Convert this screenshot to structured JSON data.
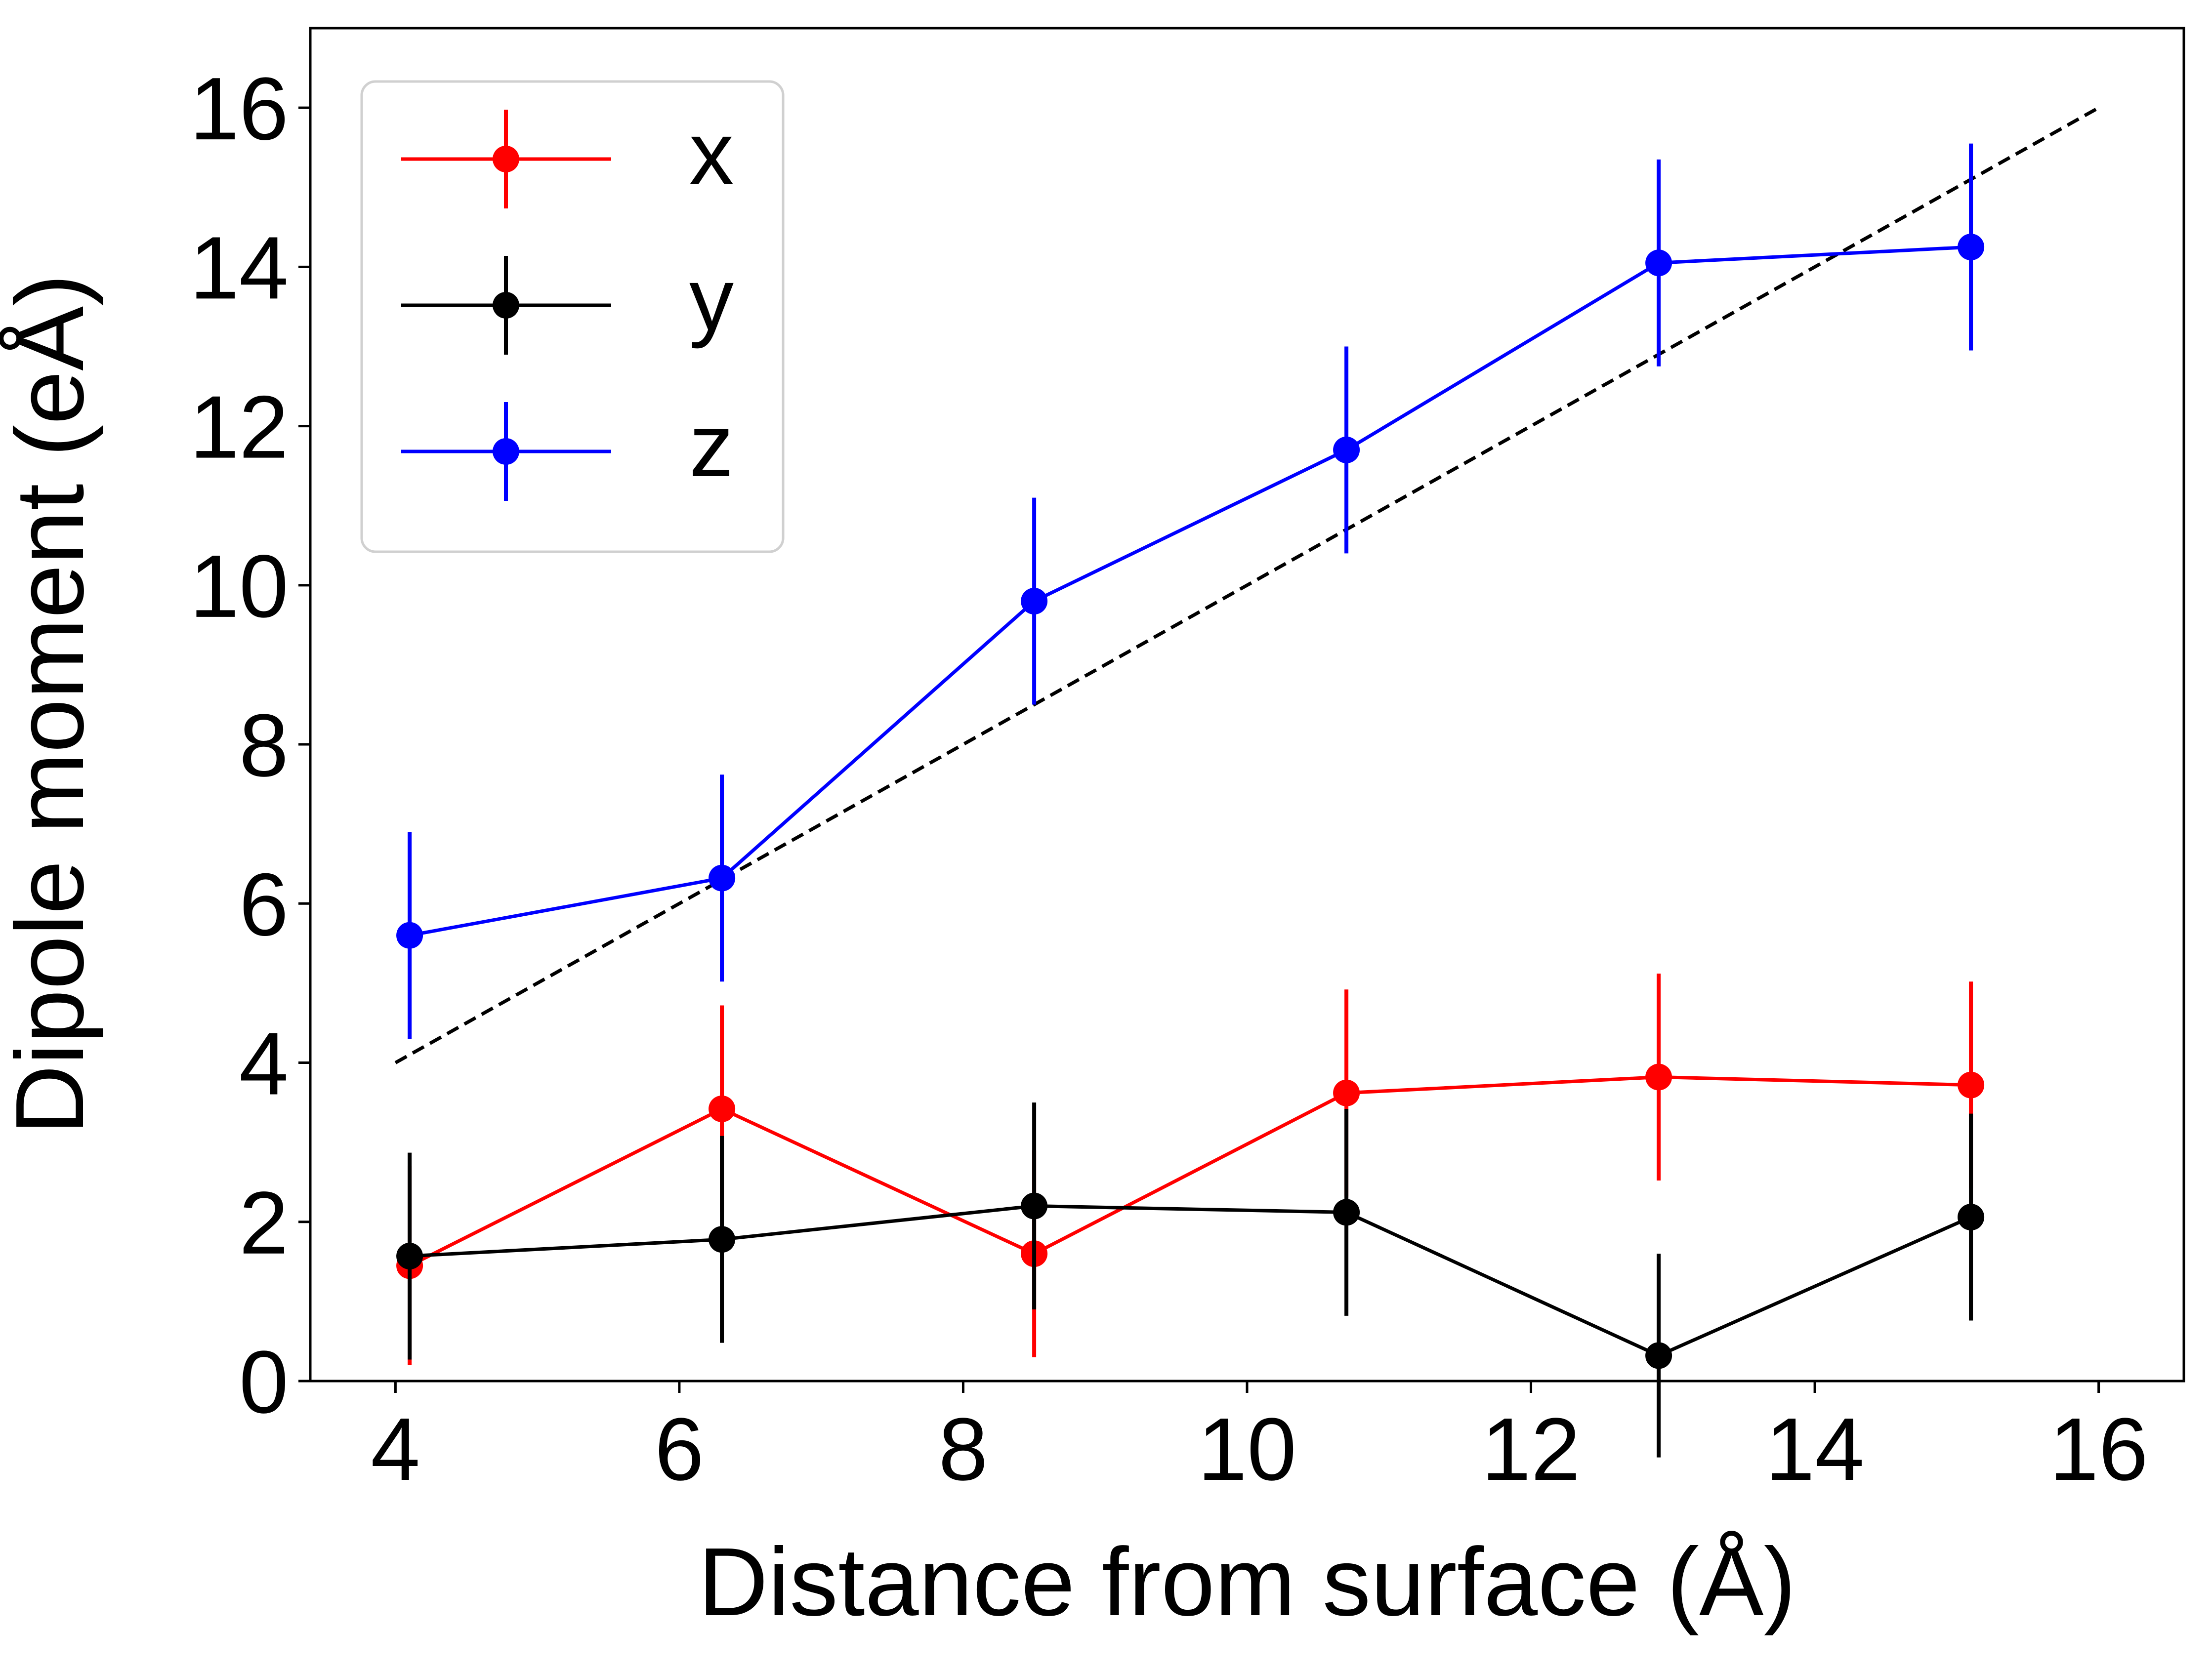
{
  "chart_data": {
    "type": "line",
    "title": "",
    "xlabel": "Distance from surface (Å)",
    "ylabel": "Dipole moment (eÅ)",
    "xlim": [
      3.4,
      16.6
    ],
    "ylim": [
      0,
      17
    ],
    "xticks": [
      4,
      6,
      8,
      10,
      12,
      14,
      16
    ],
    "yticks": [
      0,
      2,
      4,
      6,
      8,
      10,
      12,
      14,
      16
    ],
    "grid": false,
    "legend_position": "top-left",
    "x": [
      4.1,
      6.3,
      8.5,
      10.7,
      12.9,
      15.1
    ],
    "series": [
      {
        "name": "x",
        "color": "#ff0000",
        "values": [
          1.45,
          3.42,
          1.6,
          3.62,
          3.82,
          3.72
        ],
        "errors": [
          1.25,
          1.3,
          1.3,
          1.3,
          1.3,
          1.3
        ]
      },
      {
        "name": "y",
        "color": "#000000",
        "values": [
          1.57,
          1.78,
          2.2,
          2.12,
          0.32,
          2.06
        ],
        "errors": [
          1.3,
          1.3,
          1.3,
          1.3,
          1.28,
          1.3
        ]
      },
      {
        "name": "z",
        "color": "#0000ff",
        "values": [
          5.6,
          6.32,
          9.8,
          11.7,
          14.05,
          14.25
        ],
        "errors": [
          1.3,
          1.3,
          1.3,
          1.3,
          1.3,
          1.3
        ]
      }
    ],
    "reference_line": {
      "style": "dashed",
      "color": "#000000",
      "x": [
        4,
        16
      ],
      "y": [
        4,
        16
      ]
    }
  }
}
